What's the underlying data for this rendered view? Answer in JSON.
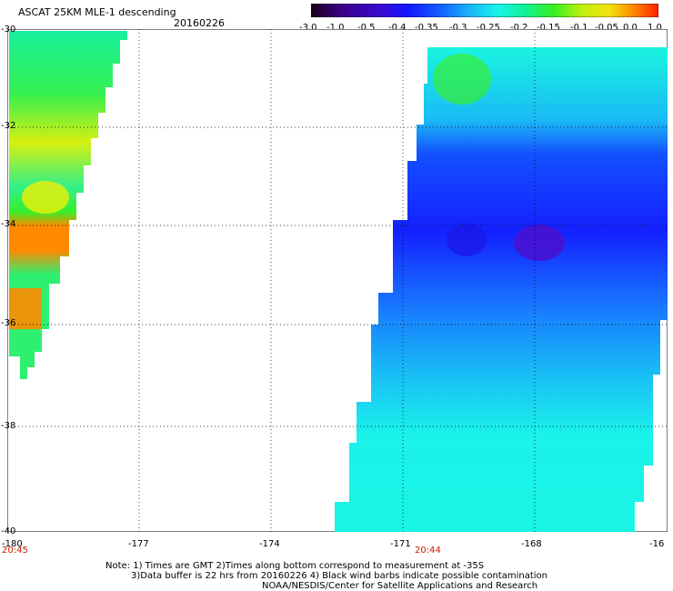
{
  "header": {
    "title": "ASCAT 25KM MLE-1 descending",
    "date": "20160226"
  },
  "colorbar": {
    "labels": [
      "-3.0",
      "-1.0",
      "-0.5",
      "-0.4",
      "-0.35",
      "-0.3",
      "-0.25",
      "-0.2",
      "-0.15",
      "-0.1",
      "-0.05",
      "0.0",
      "1.0"
    ],
    "colors": [
      "#1a0018",
      "#3b0080",
      "#3a0ad0",
      "#1218ff",
      "#1565ff",
      "#19b8f5",
      "#1af4e8",
      "#12f090",
      "#38ef20",
      "#c2ef10",
      "#f3e210",
      "#ff8500",
      "#ff2000"
    ]
  },
  "map": {
    "lat_labels": [
      "-30",
      "-32",
      "-34",
      "-36",
      "-38",
      "-40"
    ],
    "lon_labels": [
      "-180",
      "-177",
      "-174",
      "-171",
      "-168",
      "-16"
    ],
    "times": [
      "20:45",
      "20:44"
    ]
  },
  "footer": {
    "note_line1": "Note: 1) Times are GMT 2)Times along bottom correspond to measurement at -35S",
    "note_line2": "3)Data buffer is 22 hrs from 20160226 4) Black wind barbs indicate possible contamination",
    "credit": "NOAA/NESDIS/Center for Satellite Applications and Research"
  }
}
